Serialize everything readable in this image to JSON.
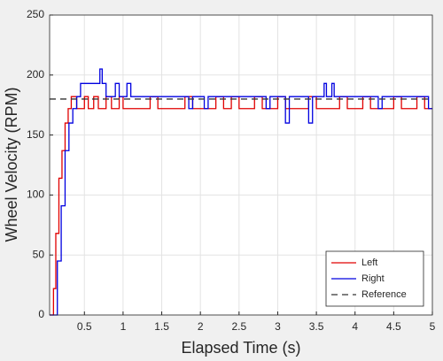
{
  "chart_data": {
    "type": "line",
    "step": true,
    "xlabel": "Elapsed Time (s)",
    "ylabel": "Wheel Velocity (RPM)",
    "xlim": [
      0.05,
      5
    ],
    "ylim": [
      0,
      250
    ],
    "xticks": [
      0.5,
      1,
      1.5,
      2,
      2.5,
      3,
      3.5,
      4,
      4.5,
      5
    ],
    "yticks": [
      0,
      50,
      100,
      150,
      200,
      250
    ],
    "grid": true,
    "legend": "southeast",
    "series": [
      {
        "name": "Left",
        "color": "#e00000",
        "dash": false,
        "x": [
          0.05,
          0.1,
          0.13,
          0.17,
          0.21,
          0.25,
          0.29,
          0.33,
          0.4,
          0.5,
          0.55,
          0.62,
          0.68,
          0.78,
          0.85,
          0.95,
          1.0,
          1.35,
          1.45,
          1.8,
          1.9,
          2.2,
          2.3,
          2.4,
          2.5,
          2.7,
          2.8,
          3.0,
          3.1,
          3.4,
          3.5,
          3.8,
          3.9,
          4.1,
          4.2,
          4.5,
          4.6,
          4.8,
          4.9
        ],
        "values": [
          0,
          22,
          68,
          114,
          137,
          160,
          172,
          182,
          172,
          182,
          172,
          182,
          172,
          182,
          172,
          182,
          172,
          182,
          172,
          182,
          172,
          182,
          172,
          182,
          172,
          182,
          172,
          182,
          172,
          182,
          172,
          182,
          172,
          182,
          172,
          182,
          172,
          182,
          172
        ]
      },
      {
        "name": "Right",
        "color": "#0000e0",
        "dash": false,
        "x": [
          0.05,
          0.15,
          0.2,
          0.25,
          0.3,
          0.35,
          0.4,
          0.45,
          0.7,
          0.73,
          0.78,
          0.9,
          0.95,
          1.05,
          1.1,
          1.85,
          1.9,
          2.05,
          2.1,
          2.85,
          2.9,
          3.1,
          3.15,
          3.4,
          3.45,
          3.6,
          3.63,
          3.7,
          3.73,
          4.3,
          4.35,
          4.95
        ],
        "values": [
          0,
          45,
          91,
          137,
          160,
          172,
          182,
          193,
          205,
          193,
          182,
          193,
          182,
          193,
          182,
          172,
          182,
          172,
          182,
          172,
          182,
          160,
          182,
          160,
          182,
          193,
          182,
          193,
          182,
          172,
          182,
          172
        ]
      },
      {
        "name": "Reference",
        "color": "#333333",
        "dash": true,
        "x": [
          0.05,
          5
        ],
        "values": [
          180,
          180
        ]
      }
    ]
  }
}
